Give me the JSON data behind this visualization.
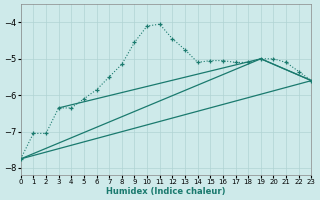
{
  "xlabel": "Humidex (Indice chaleur)",
  "background_color": "#ceeaea",
  "grid_color": "#b0d4d4",
  "line_color": "#1a7a6e",
  "xlim": [
    0,
    23
  ],
  "ylim": [
    -8.2,
    -3.5
  ],
  "yticks": [
    -8,
    -7,
    -6,
    -5,
    -4
  ],
  "xticks": [
    0,
    1,
    2,
    3,
    4,
    5,
    6,
    7,
    8,
    9,
    10,
    11,
    12,
    13,
    14,
    15,
    16,
    17,
    18,
    19,
    20,
    21,
    22,
    23
  ],
  "curve1_x": [
    0,
    1,
    2,
    3,
    4,
    5,
    6,
    7,
    8,
    9,
    10,
    11,
    12,
    13,
    14,
    15,
    16,
    17,
    18,
    19,
    20,
    21,
    22,
    23
  ],
  "curve1_y": [
    -7.75,
    -7.05,
    -7.05,
    -6.35,
    -6.35,
    -6.1,
    -5.85,
    -5.5,
    -5.15,
    -4.55,
    -4.1,
    -4.05,
    -4.45,
    -4.75,
    -5.1,
    -5.05,
    -5.05,
    -5.1,
    -5.1,
    -5.0,
    -5.0,
    -5.1,
    -5.35,
    -5.6
  ],
  "line1_x": [
    0,
    23
  ],
  "line1_y": [
    -7.75,
    -5.6
  ],
  "line2_x": [
    0,
    19,
    23
  ],
  "line2_y": [
    -7.75,
    -5.0,
    -5.6
  ],
  "line3_x": [
    3,
    19,
    23
  ],
  "line3_y": [
    -6.35,
    -5.0,
    -5.6
  ]
}
